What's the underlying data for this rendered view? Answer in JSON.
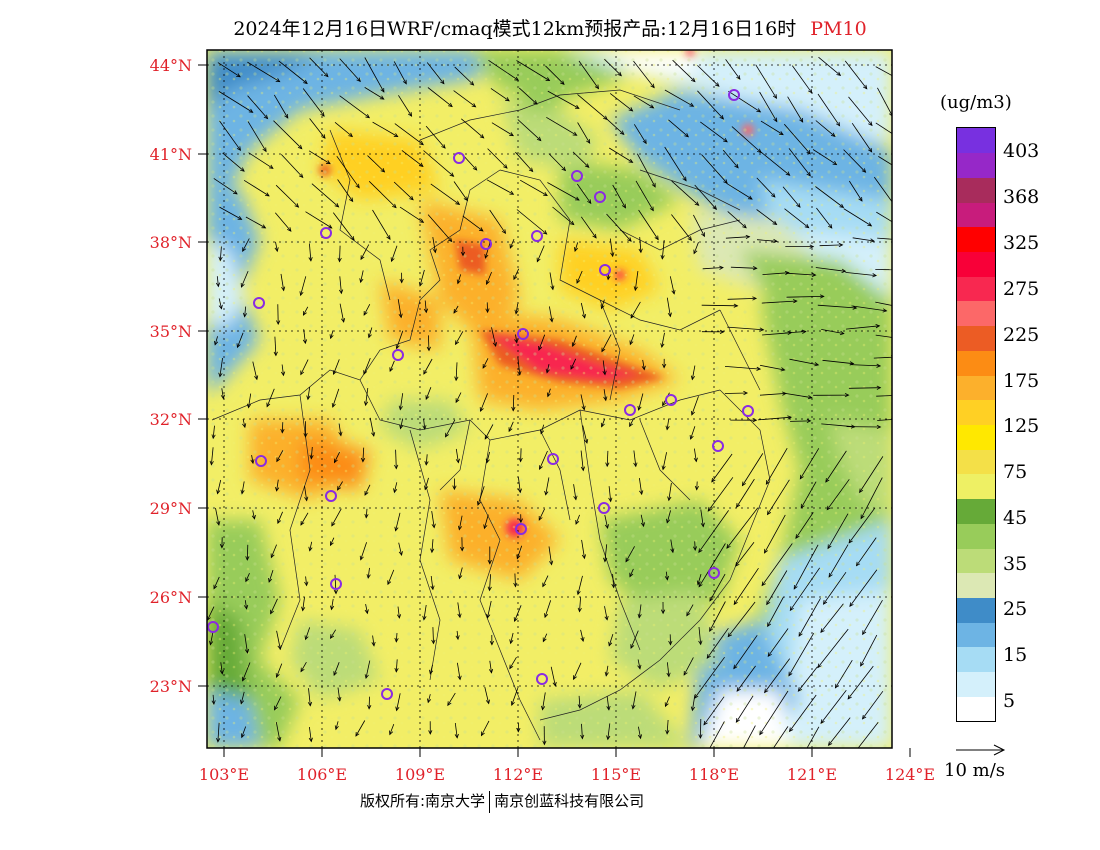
{
  "title": {
    "main": "2024年12月16日WRF/cmaq模式12km预报产品:12月16日16时",
    "pollutant": "PM10"
  },
  "axes": {
    "lat_labels": [
      "44°N",
      "41°N",
      "38°N",
      "35°N",
      "32°N",
      "29°N",
      "26°N",
      "23°N"
    ],
    "lon_labels": [
      "103°E",
      "106°E",
      "109°E",
      "112°E",
      "115°E",
      "118°E",
      "121°E",
      "124°E"
    ]
  },
  "legend": {
    "unit": "(ug/m3)",
    "labels": [
      "403",
      "368",
      "325",
      "275",
      "225",
      "175",
      "125",
      "75",
      "45",
      "35",
      "25",
      "15",
      "5"
    ],
    "colors": [
      "#ffffff",
      "#d4f0fb",
      "#a6dcf4",
      "#6db4e4",
      "#3f8cc8",
      "#dce8b4",
      "#bcdc78",
      "#98cc5a",
      "#66aa38",
      "#eef064",
      "#f4e048",
      "#ffe800",
      "#ffd024",
      "#fcb02c",
      "#fc8c14",
      "#ec5c24",
      "#fc6868",
      "#f82850",
      "#f80038",
      "#ff0000",
      "#c81c7c",
      "#a82c5c",
      "#9628c8",
      "#7830e0"
    ]
  },
  "vector_reference": "10 m/s",
  "footer": {
    "left": "版权所有:南京大学",
    "right": "南京创蓝科技有限公司"
  }
}
